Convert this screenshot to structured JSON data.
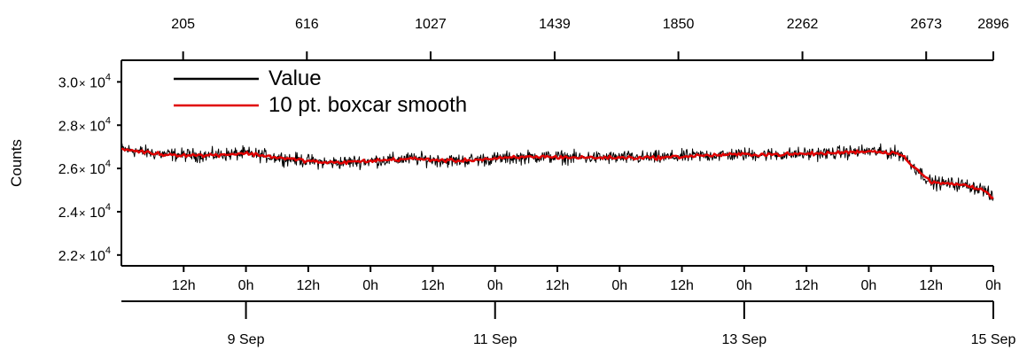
{
  "chart_data": {
    "type": "line",
    "title": "",
    "xlabel": "",
    "ylabel": "Counts",
    "ylim": [
      21500,
      31000
    ],
    "grid": false,
    "legend_position": "top-left",
    "y_ticks": [
      {
        "value": 22000,
        "mantissa": "2.2",
        "times": "×",
        "base": "10",
        "exp": "4"
      },
      {
        "value": 24000,
        "mantissa": "2.4",
        "times": "×",
        "base": "10",
        "exp": "4"
      },
      {
        "value": 26000,
        "mantissa": "2.6",
        "times": "×",
        "base": "10",
        "exp": "4"
      },
      {
        "value": 28000,
        "mantissa": "2.8",
        "times": "×",
        "base": "10",
        "exp": "4"
      },
      {
        "value": 30000,
        "mantissa": "3.0",
        "times": "×",
        "base": "10",
        "exp": "4"
      }
    ],
    "top_axis": {
      "range": [
        0,
        2896
      ],
      "ticks": [
        205,
        616,
        1027,
        1439,
        1850,
        2262,
        2673,
        2896
      ],
      "labels": [
        "205",
        "616",
        "1027",
        "1439",
        "1850",
        "2262",
        "2673",
        "2896"
      ]
    },
    "time_axis": {
      "ticks": [
        12,
        24,
        36,
        48,
        60,
        72,
        84,
        96,
        108,
        120,
        132,
        144,
        156,
        168
      ],
      "labels": [
        "12h",
        "0h",
        "12h",
        "0h",
        "12h",
        "0h",
        "12h",
        "0h",
        "12h",
        "0h",
        "12h",
        "0h",
        "12h",
        "0h"
      ]
    },
    "date_axis": {
      "ticks": [
        24,
        72,
        120,
        168
      ],
      "labels": [
        "9 Sep",
        "11 Sep",
        "13 Sep",
        "15 Sep"
      ]
    },
    "series": [
      {
        "name": "Value",
        "color": "#000000",
        "style": "noisy raw data",
        "x": [
          0,
          8,
          16,
          24,
          32,
          40,
          48,
          56,
          64,
          72,
          80,
          88,
          96,
          104,
          112,
          120,
          128,
          136,
          144,
          150,
          154,
          156,
          162,
          166,
          168
        ],
        "y": [
          26900,
          26650,
          26600,
          26700,
          26450,
          26250,
          26350,
          26450,
          26350,
          26450,
          26550,
          26500,
          26500,
          26500,
          26600,
          26650,
          26650,
          26700,
          26800,
          26700,
          25800,
          25350,
          25250,
          25050,
          24600
        ],
        "noise_amplitude": 450
      },
      {
        "name": "10 pt. boxcar smooth",
        "color": "#e00000",
        "style": "smoothed line",
        "x": [
          0,
          8,
          16,
          24,
          32,
          40,
          48,
          56,
          64,
          72,
          80,
          88,
          96,
          104,
          112,
          120,
          128,
          136,
          144,
          150,
          154,
          156,
          162,
          166,
          168
        ],
        "y": [
          26900,
          26650,
          26600,
          26700,
          26450,
          26250,
          26350,
          26450,
          26350,
          26450,
          26550,
          26500,
          26500,
          26500,
          26600,
          26650,
          26650,
          26700,
          26800,
          26700,
          25800,
          25350,
          25250,
          25050,
          24600
        ],
        "noise_amplitude": 120
      }
    ]
  }
}
